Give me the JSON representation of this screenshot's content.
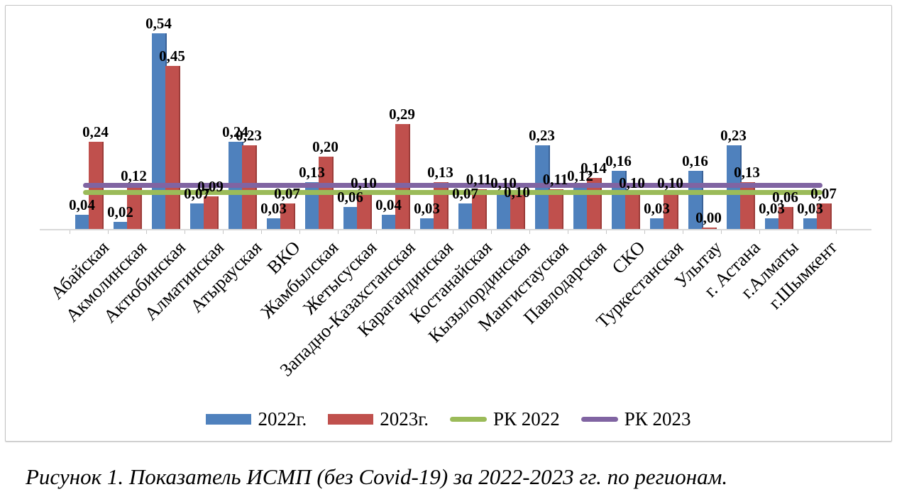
{
  "figure_caption": "Рисунок 1. Показатель ИСМП (без Covid-19) за 2022-2023 гг. по регионам.",
  "chart_data": {
    "type": "bar",
    "title": "",
    "xlabel": "",
    "ylabel": "",
    "ylim": [
      0,
      0.6
    ],
    "gridlines": false,
    "legend_position": "bottom",
    "value_labels": true,
    "decimal_separator": ",",
    "axis_color": "#d9d9d9",
    "categories": [
      "Абайская",
      "Акмолинская",
      "Актюбинская",
      "Алматинская",
      "Атырауская",
      "ВКО",
      "Жамбылская",
      "Жетысуская",
      "Западно-Казахстанская",
      "Карагандинская",
      "Костанайская",
      "Кызылординская",
      "Мангистауская",
      "Павлодарская",
      "СКО",
      "Туркестанская",
      "Улытау",
      "г. Астана",
      "г.Алматы",
      "г.Шымкент"
    ],
    "series": [
      {
        "name": "2022г.",
        "type": "bar",
        "color": "#4F81BD",
        "border": "#3A6298",
        "values": [
          0.04,
          0.02,
          0.54,
          0.07,
          0.24,
          0.03,
          0.13,
          0.06,
          0.04,
          0.03,
          0.07,
          0.1,
          0.23,
          0.12,
          0.16,
          0.03,
          0.16,
          0.23,
          0.03,
          0.03
        ]
      },
      {
        "name": "2023г.",
        "type": "bar",
        "color": "#C0504D",
        "border": "#9C3D3A",
        "values": [
          0.24,
          0.12,
          0.45,
          0.09,
          0.23,
          0.07,
          0.2,
          0.1,
          0.29,
          0.13,
          0.11,
          0.1,
          0.11,
          0.14,
          0.1,
          0.1,
          0.0,
          0.13,
          0.06,
          0.07
        ]
      },
      {
        "name": "РК 2022",
        "type": "line",
        "color": "#9BBB59",
        "value": 0.1
      },
      {
        "name": "РК 2023",
        "type": "line",
        "color": "#8064A2",
        "value": 0.12
      }
    ]
  }
}
